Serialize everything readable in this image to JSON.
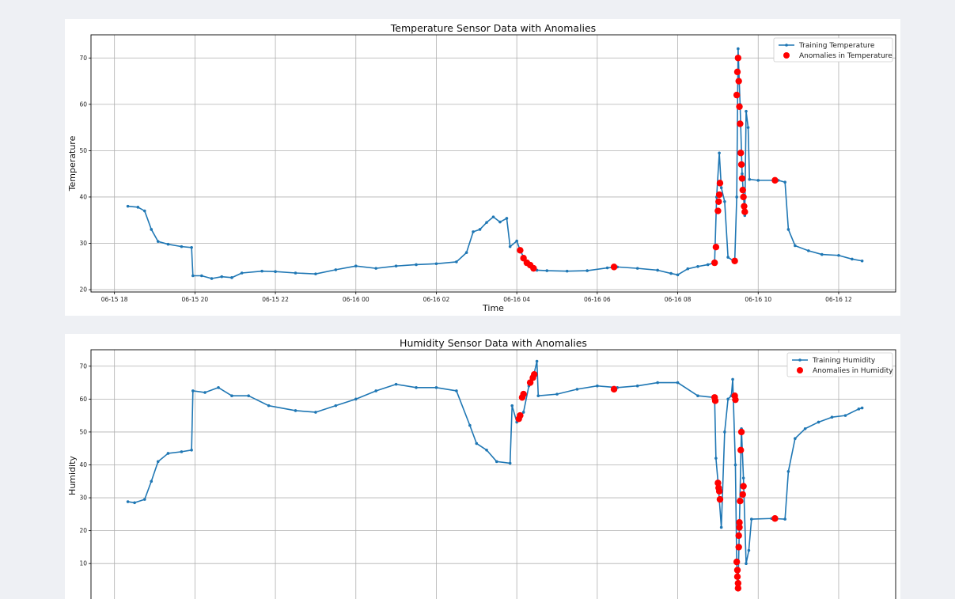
{
  "chart_data": [
    {
      "type": "line",
      "title": "Temperature Sensor Data with Anomalies",
      "xlabel": "Time",
      "ylabel": "Temperature",
      "grid": true,
      "legend_position": "top-right",
      "xlim": [
        "06-15 17:25",
        "06-16 13:25"
      ],
      "ylim": [
        19.5,
        75
      ],
      "x_ticks": [
        "06-15 18",
        "06-15 20",
        "06-15 22",
        "06-16 00",
        "06-16 02",
        "06-16 04",
        "06-16 06",
        "06-16 08",
        "06-16 10",
        "06-16 12"
      ],
      "y_ticks": [
        20,
        30,
        40,
        50,
        60,
        70
      ],
      "series": [
        {
          "name": "Training Temperature",
          "color": "#1f77b4",
          "points": [
            [
              "06-15 18:20",
              38.0
            ],
            [
              "06-15 18:35",
              37.8
            ],
            [
              "06-15 18:45",
              37.0
            ],
            [
              "06-15 18:55",
              33.0
            ],
            [
              "06-15 19:05",
              30.4
            ],
            [
              "06-15 19:20",
              29.8
            ],
            [
              "06-15 19:40",
              29.3
            ],
            [
              "06-15 19:55",
              29.1
            ],
            [
              "06-15 19:57",
              23.0
            ],
            [
              "06-15 20:10",
              23.0
            ],
            [
              "06-15 20:25",
              22.4
            ],
            [
              "06-15 20:40",
              22.8
            ],
            [
              "06-15 20:55",
              22.6
            ],
            [
              "06-15 21:10",
              23.6
            ],
            [
              "06-15 21:40",
              24.0
            ],
            [
              "06-15 22:00",
              23.9
            ],
            [
              "06-15 22:30",
              23.6
            ],
            [
              "06-15 23:00",
              23.4
            ],
            [
              "06-15 23:30",
              24.3
            ],
            [
              "06-16 00:00",
              25.1
            ],
            [
              "06-16 00:30",
              24.6
            ],
            [
              "06-16 01:00",
              25.1
            ],
            [
              "06-16 01:30",
              25.4
            ],
            [
              "06-16 02:00",
              25.6
            ],
            [
              "06-16 02:30",
              26.0
            ],
            [
              "06-16 02:45",
              28.0
            ],
            [
              "06-16 02:55",
              32.5
            ],
            [
              "06-16 03:05",
              33.0
            ],
            [
              "06-16 03:15",
              34.5
            ],
            [
              "06-16 03:25",
              35.7
            ],
            [
              "06-16 03:35",
              34.6
            ],
            [
              "06-16 03:45",
              35.4
            ],
            [
              "06-16 03:50",
              29.3
            ],
            [
              "06-16 04:00",
              30.5
            ],
            [
              "06-16 04:05",
              28.5
            ],
            [
              "06-16 04:12",
              26.5
            ],
            [
              "06-16 04:20",
              25.0
            ],
            [
              "06-16 04:30",
              24.2
            ],
            [
              "06-16 04:45",
              24.1
            ],
            [
              "06-16 05:15",
              24.0
            ],
            [
              "06-16 05:45",
              24.1
            ],
            [
              "06-16 06:15",
              24.7
            ],
            [
              "06-16 06:30",
              24.9
            ],
            [
              "06-16 07:00",
              24.6
            ],
            [
              "06-16 07:30",
              24.2
            ],
            [
              "06-16 07:50",
              23.5
            ],
            [
              "06-16 08:00",
              23.2
            ],
            [
              "06-16 08:15",
              24.5
            ],
            [
              "06-16 08:30",
              25.0
            ],
            [
              "06-16 08:45",
              25.4
            ],
            [
              "06-16 08:55",
              25.8
            ],
            [
              "06-16 08:58",
              40.0
            ],
            [
              "06-16 09:02",
              49.5
            ],
            [
              "06-16 09:05",
              42.0
            ],
            [
              "06-16 09:10",
              39.0
            ],
            [
              "06-16 09:15",
              27.0
            ],
            [
              "06-16 09:25",
              26.0
            ],
            [
              "06-16 09:28",
              40.0
            ],
            [
              "06-16 09:30",
              72.0
            ],
            [
              "06-16 09:33",
              60.0
            ],
            [
              "06-16 09:36",
              45.0
            ],
            [
              "06-16 09:40",
              36.0
            ],
            [
              "06-16 09:42",
              58.5
            ],
            [
              "06-16 09:45",
              55.0
            ],
            [
              "06-16 09:47",
              43.8
            ],
            [
              "06-16 10:00",
              43.6
            ],
            [
              "06-16 10:30",
              43.6
            ],
            [
              "06-16 10:40",
              43.2
            ],
            [
              "06-16 10:45",
              33.0
            ],
            [
              "06-16 10:55",
              29.5
            ],
            [
              "06-16 11:15",
              28.4
            ],
            [
              "06-16 11:35",
              27.6
            ],
            [
              "06-16 12:00",
              27.4
            ],
            [
              "06-16 12:20",
              26.6
            ],
            [
              "06-16 12:35",
              26.2
            ]
          ]
        },
        {
          "name": "Anomalies in Temperature",
          "color": "#ff0000",
          "type": "scatter",
          "points": [
            [
              "06-16 04:05",
              28.5
            ],
            [
              "06-16 04:10",
              26.8
            ],
            [
              "06-16 04:15",
              25.8
            ],
            [
              "06-16 04:20",
              25.3
            ],
            [
              "06-16 04:25",
              24.6
            ],
            [
              "06-16 06:25",
              24.9
            ],
            [
              "06-16 08:55",
              25.8
            ],
            [
              "06-16 08:57",
              29.2
            ],
            [
              "06-16 09:00",
              37.0
            ],
            [
              "06-16 09:01",
              39.0
            ],
            [
              "06-16 09:02",
              40.5
            ],
            [
              "06-16 09:03",
              43.0
            ],
            [
              "06-16 09:25",
              26.2
            ],
            [
              "06-16 09:28",
              62.0
            ],
            [
              "06-16 09:29",
              67.0
            ],
            [
              "06-16 09:30",
              70.0
            ],
            [
              "06-16 09:31",
              65.0
            ],
            [
              "06-16 09:32",
              59.5
            ],
            [
              "06-16 09:33",
              55.8
            ],
            [
              "06-16 09:34",
              49.5
            ],
            [
              "06-16 09:35",
              47.0
            ],
            [
              "06-16 09:36",
              44.0
            ],
            [
              "06-16 09:37",
              41.5
            ],
            [
              "06-16 09:38",
              40.0
            ],
            [
              "06-16 09:39",
              38.0
            ],
            [
              "06-16 09:40",
              36.8
            ],
            [
              "06-16 10:25",
              43.6
            ]
          ]
        }
      ]
    },
    {
      "type": "line",
      "title": "Humidity Sensor Data with Anomalies",
      "xlabel": "",
      "ylabel": "Humidity",
      "grid": true,
      "legend_position": "top-right",
      "xlim": [
        "06-15 17:25",
        "06-16 13:25"
      ],
      "ylim": [
        -1.5,
        75
      ],
      "y_ticks": [
        10,
        20,
        30,
        40,
        50,
        60,
        70
      ],
      "series": [
        {
          "name": "Training Humidity",
          "color": "#1f77b4",
          "points": [
            [
              "06-15 18:20",
              28.8
            ],
            [
              "06-15 18:30",
              28.5
            ],
            [
              "06-15 18:45",
              29.5
            ],
            [
              "06-15 18:55",
              35.0
            ],
            [
              "06-15 19:05",
              41.0
            ],
            [
              "06-15 19:20",
              43.5
            ],
            [
              "06-15 19:40",
              44.0
            ],
            [
              "06-15 19:55",
              44.5
            ],
            [
              "06-15 19:57",
              62.5
            ],
            [
              "06-15 20:15",
              62.0
            ],
            [
              "06-15 20:35",
              63.5
            ],
            [
              "06-15 20:55",
              61.0
            ],
            [
              "06-15 21:20",
              61.0
            ],
            [
              "06-15 21:50",
              58.0
            ],
            [
              "06-15 22:30",
              56.5
            ],
            [
              "06-15 23:00",
              56.0
            ],
            [
              "06-15 23:30",
              58.0
            ],
            [
              "06-16 00:00",
              60.0
            ],
            [
              "06-16 00:30",
              62.5
            ],
            [
              "06-16 01:00",
              64.5
            ],
            [
              "06-16 01:30",
              63.5
            ],
            [
              "06-16 02:00",
              63.5
            ],
            [
              "06-16 02:30",
              62.5
            ],
            [
              "06-16 02:50",
              52.0
            ],
            [
              "06-16 03:00",
              46.5
            ],
            [
              "06-16 03:15",
              44.5
            ],
            [
              "06-16 03:30",
              41.0
            ],
            [
              "06-16 03:50",
              40.5
            ],
            [
              "06-16 03:53",
              58.0
            ],
            [
              "06-16 04:00",
              53.0
            ],
            [
              "06-16 04:10",
              56.0
            ],
            [
              "06-16 04:18",
              64.0
            ],
            [
              "06-16 04:25",
              67.0
            ],
            [
              "06-16 04:30",
              71.5
            ],
            [
              "06-16 04:32",
              61.0
            ],
            [
              "06-16 05:00",
              61.5
            ],
            [
              "06-16 05:30",
              63.0
            ],
            [
              "06-16 06:00",
              64.0
            ],
            [
              "06-16 06:30",
              63.5
            ],
            [
              "06-16 07:00",
              64.0
            ],
            [
              "06-16 07:30",
              65.0
            ],
            [
              "06-16 08:00",
              65.0
            ],
            [
              "06-16 08:30",
              61.0
            ],
            [
              "06-16 08:55",
              60.5
            ],
            [
              "06-16 08:57",
              42.0
            ],
            [
              "06-16 09:00",
              35.0
            ],
            [
              "06-16 09:05",
              21.0
            ],
            [
              "06-16 09:10",
              50.0
            ],
            [
              "06-16 09:15",
              60.0
            ],
            [
              "06-16 09:20",
              61.0
            ],
            [
              "06-16 09:22",
              66.0
            ],
            [
              "06-16 09:26",
              40.0
            ],
            [
              "06-16 09:28",
              10.0
            ],
            [
              "06-16 09:30",
              3.0
            ],
            [
              "06-16 09:32",
              22.0
            ],
            [
              "06-16 09:35",
              51.0
            ],
            [
              "06-16 09:38",
              36.0
            ],
            [
              "06-16 09:42",
              10.0
            ],
            [
              "06-16 09:46",
              14.0
            ],
            [
              "06-16 09:50",
              23.5
            ],
            [
              "06-16 10:20",
              23.7
            ],
            [
              "06-16 10:40",
              23.5
            ],
            [
              "06-16 10:45",
              38.0
            ],
            [
              "06-16 10:55",
              48.0
            ],
            [
              "06-16 11:10",
              51.0
            ],
            [
              "06-16 11:30",
              53.0
            ],
            [
              "06-16 11:50",
              54.5
            ],
            [
              "06-16 12:10",
              55.0
            ],
            [
              "06-16 12:30",
              57.0
            ],
            [
              "06-16 12:35",
              57.3
            ]
          ]
        },
        {
          "name": "Anomalies in Humidity",
          "color": "#ff0000",
          "type": "scatter",
          "points": [
            [
              "06-16 04:03",
              54.0
            ],
            [
              "06-16 04:05",
              55.0
            ],
            [
              "06-16 04:08",
              60.5
            ],
            [
              "06-16 04:10",
              61.5
            ],
            [
              "06-16 04:20",
              65.0
            ],
            [
              "06-16 04:24",
              66.5
            ],
            [
              "06-16 04:26",
              67.5
            ],
            [
              "06-16 06:25",
              63.0
            ],
            [
              "06-16 08:55",
              60.5
            ],
            [
              "06-16 08:56",
              59.5
            ],
            [
              "06-16 09:00",
              34.5
            ],
            [
              "06-16 09:01",
              33.0
            ],
            [
              "06-16 09:02",
              32.0
            ],
            [
              "06-16 09:03",
              29.5
            ],
            [
              "06-16 09:25",
              61.0
            ],
            [
              "06-16 09:26",
              59.8
            ],
            [
              "06-16 09:28",
              10.5
            ],
            [
              "06-16 09:29",
              8.0
            ],
            [
              "06-16 09:29",
              6.0
            ],
            [
              "06-16 09:30",
              4.0
            ],
            [
              "06-16 09:30",
              2.5
            ],
            [
              "06-16 09:31",
              15.0
            ],
            [
              "06-16 09:31",
              18.5
            ],
            [
              "06-16 09:32",
              21.0
            ],
            [
              "06-16 09:32",
              22.5
            ],
            [
              "06-16 09:33",
              29.0
            ],
            [
              "06-16 09:34",
              44.5
            ],
            [
              "06-16 09:35",
              50.0
            ],
            [
              "06-16 09:37",
              31.0
            ],
            [
              "06-16 09:38",
              33.5
            ],
            [
              "06-16 10:25",
              23.7
            ]
          ]
        }
      ]
    }
  ]
}
